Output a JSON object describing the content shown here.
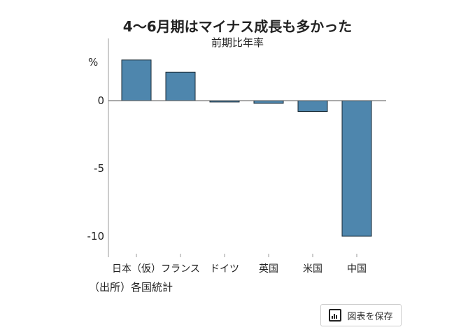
{
  "chart_data": {
    "type": "bar",
    "title": "4～6月期はマイナス成長も多かった",
    "subtitle": "前期比年率",
    "ylabel": "%",
    "categories": [
      "日本（仮）",
      "フランス",
      "ドイツ",
      "英国",
      "米国",
      "中国"
    ],
    "values": [
      3.0,
      2.1,
      -0.1,
      -0.2,
      -0.8,
      -10.0
    ],
    "yticks": [
      0,
      -5,
      -10
    ],
    "ytick_labels": [
      "0",
      "-5",
      "-10"
    ],
    "ylim": [
      -11.5,
      4.5
    ],
    "grid": false,
    "bar_color": "#4e86ad",
    "source": "（出所）各国統計"
  },
  "toolbar": {
    "save_label": "図表を保存",
    "save_icon": "bar-chart-icon"
  }
}
